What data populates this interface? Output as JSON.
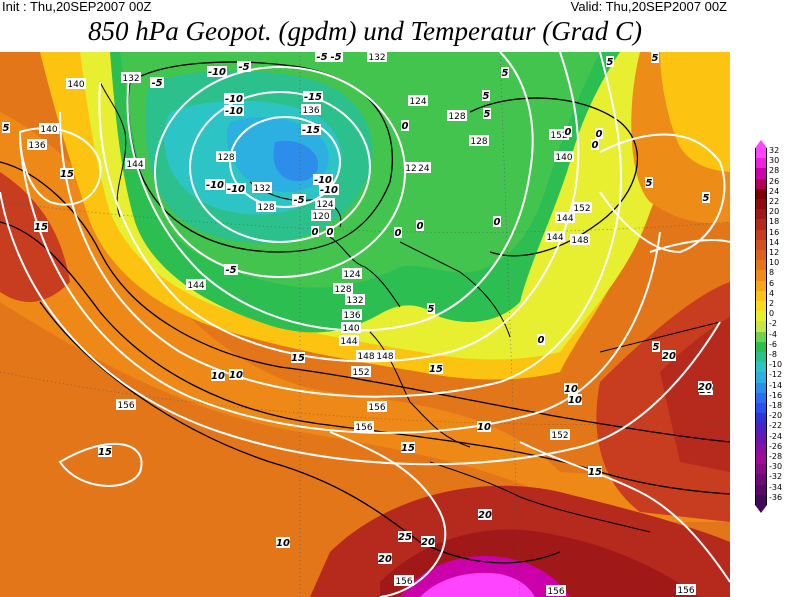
{
  "header": {
    "init": "Init : Thu,20SEP2007 00Z",
    "valid": "Valid: Thu,20SEP2007 00Z",
    "title": "850 hPa Geopot. (gpdm) und Temperatur (Grad C)"
  },
  "legend": {
    "labels": [
      "32",
      "30",
      "28",
      "26",
      "24",
      "22",
      "20",
      "18",
      "16",
      "14",
      "12",
      "10",
      "8",
      "6",
      "4",
      "2",
      "0",
      "-2",
      "-4",
      "-6",
      "-8",
      "-10",
      "-12",
      "-14",
      "-16",
      "-18",
      "-20",
      "-22",
      "-24",
      "-26",
      "-28",
      "-30",
      "-32",
      "-34",
      "-36"
    ],
    "colors": [
      "#ff44ff",
      "#ee22dd",
      "#cc00aa",
      "#b30055",
      "#7a0000",
      "#8e0c0c",
      "#a01818",
      "#b52a1c",
      "#c83c20",
      "#d2501e",
      "#dc621c",
      "#e4761a",
      "#ee8c18",
      "#f4a614",
      "#fcc410",
      "#f6dc20",
      "#e8ee30",
      "#c4e84a",
      "#70d24e",
      "#2cbe50",
      "#2cc08c",
      "#2cc4c4",
      "#2cb0e2",
      "#2c8eea",
      "#2c6cf0",
      "#2c4ef2",
      "#3232d8",
      "#4c22c0",
      "#6a16b0",
      "#8a10a4",
      "#a00c98",
      "#880c88",
      "#6c0c78",
      "#540a66",
      "#440858"
    ]
  },
  "map": {
    "geopotential_labels": [
      {
        "text": "132"
      },
      {
        "text": "140"
      },
      {
        "text": "140"
      },
      {
        "text": "136"
      },
      {
        "text": "132"
      },
      {
        "text": "136"
      },
      {
        "text": "128"
      },
      {
        "text": "132"
      },
      {
        "text": "128"
      },
      {
        "text": "124"
      },
      {
        "text": "120"
      },
      {
        "text": "124"
      },
      {
        "text": "128"
      },
      {
        "text": "132"
      },
      {
        "text": "136"
      },
      {
        "text": "140"
      },
      {
        "text": "144"
      },
      {
        "text": "148"
      },
      {
        "text": "152"
      },
      {
        "text": "124"
      },
      {
        "text": "128"
      },
      {
        "text": "124"
      },
      {
        "text": "128"
      },
      {
        "text": "144"
      },
      {
        "text": "148"
      },
      {
        "text": "152"
      },
      {
        "text": "152"
      },
      {
        "text": "140"
      },
      {
        "text": "144"
      },
      {
        "text": "148"
      },
      {
        "text": "144"
      },
      {
        "text": "144"
      },
      {
        "text": "156"
      },
      {
        "text": "156"
      },
      {
        "text": "156"
      },
      {
        "text": "152"
      },
      {
        "text": "156"
      },
      {
        "text": "156"
      },
      {
        "text": "156"
      },
      {
        "text": "12"
      }
    ],
    "temperature_labels": [
      {
        "text": "-10"
      },
      {
        "text": "-5"
      },
      {
        "text": "-5"
      },
      {
        "text": "-10"
      },
      {
        "text": "-10"
      },
      {
        "text": "-15"
      },
      {
        "text": "-15"
      },
      {
        "text": "-10"
      },
      {
        "text": "-10"
      },
      {
        "text": "-10"
      },
      {
        "text": "-5"
      },
      {
        "text": "-10"
      },
      {
        "text": "-5"
      },
      {
        "text": "-5"
      },
      {
        "text": "-5"
      },
      {
        "text": "0"
      },
      {
        "text": "0"
      },
      {
        "text": "0"
      },
      {
        "text": "0"
      },
      {
        "text": "0"
      },
      {
        "text": "0"
      },
      {
        "text": "0"
      },
      {
        "text": "0"
      },
      {
        "text": "5"
      },
      {
        "text": "5"
      },
      {
        "text": "5"
      },
      {
        "text": "5"
      },
      {
        "text": "5"
      },
      {
        "text": "5"
      },
      {
        "text": "5"
      },
      {
        "text": "5"
      },
      {
        "text": "10"
      },
      {
        "text": "10"
      },
      {
        "text": "10"
      },
      {
        "text": "10"
      },
      {
        "text": "10"
      },
      {
        "text": "10"
      },
      {
        "text": "10"
      },
      {
        "text": "15"
      },
      {
        "text": "15"
      },
      {
        "text": "15"
      },
      {
        "text": "15"
      },
      {
        "text": "15"
      },
      {
        "text": "15"
      },
      {
        "text": "20"
      },
      {
        "text": "20"
      },
      {
        "text": "20"
      },
      {
        "text": "20"
      },
      {
        "text": "20"
      },
      {
        "text": "25"
      },
      {
        "text": "15"
      },
      {
        "text": "5"
      },
      {
        "text": "0"
      },
      {
        "text": "0"
      },
      {
        "text": "5"
      }
    ]
  }
}
